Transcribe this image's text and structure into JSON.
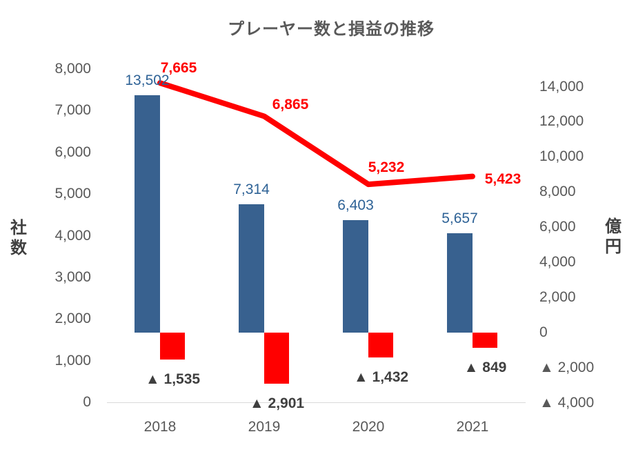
{
  "title": "プレーヤー数と損益の推移",
  "colors": {
    "bar_blue": "#38618F",
    "bar_red": "#FF0000",
    "line_red": "#FF0000",
    "label_blue": "#2E6296",
    "label_red": "#FF0000",
    "label_dark": "#3F3F3F",
    "axis_text": "#595959",
    "axis_line": "#D9D9D9"
  },
  "left_axis": {
    "unit_label": "社数",
    "tick_labels": [
      "8,000",
      "7,000",
      "6,000",
      "5,000",
      "4,000",
      "3,000",
      "2,000",
      "1,000",
      "0"
    ],
    "tick_values": [
      8000,
      7000,
      6000,
      5000,
      4000,
      3000,
      2000,
      1000,
      0
    ]
  },
  "right_axis": {
    "unit_label": "億円",
    "tick_labels": [
      "14,000",
      "12,000",
      "10,000",
      "8,000",
      "6,000",
      "4,000",
      "2,000",
      "0",
      "▲ 2,000",
      "▲ 4,000"
    ],
    "tick_values": [
      14000,
      12000,
      10000,
      8000,
      6000,
      4000,
      2000,
      0,
      -2000,
      -4000
    ]
  },
  "chart_data": {
    "type": "combo",
    "title": "プレーヤー数と損益の推移",
    "categories": [
      "2018",
      "2019",
      "2020",
      "2021"
    ],
    "series": [
      {
        "name": "player-count-bars",
        "type": "bar",
        "axis": "right",
        "values": [
          13502,
          7314,
          6403,
          5657
        ],
        "data_labels": [
          "13,502",
          "7,314",
          "6,403",
          "5,657"
        ]
      },
      {
        "name": "loss-bars-negative",
        "type": "bar",
        "axis": "right",
        "values": [
          -1535,
          -2901,
          -1432,
          -849
        ],
        "data_labels": [
          "▲ 1,535",
          "▲ 2,901",
          "▲ 1,432",
          "▲ 849"
        ]
      },
      {
        "name": "profit-line",
        "type": "line",
        "axis": "left",
        "values": [
          7665,
          6865,
          5232,
          5423
        ],
        "data_labels": [
          "7,665",
          "6,865",
          "5,232",
          "5,423"
        ]
      }
    ],
    "left_axis_range": [
      0,
      8000
    ],
    "right_axis_range": [
      -4000,
      14000
    ],
    "grid": false,
    "legend": "none"
  }
}
